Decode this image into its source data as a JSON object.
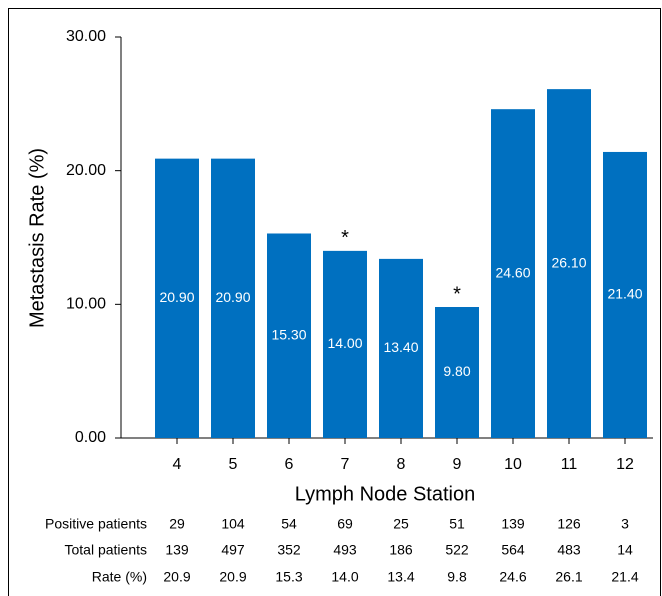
{
  "chart_data": {
    "type": "bar",
    "x_label": "Lymph Node Station",
    "y_label": "Metastasis Rate (%)",
    "categories": [
      "4",
      "5",
      "6",
      "7",
      "8",
      "9",
      "10",
      "11",
      "12"
    ],
    "values": [
      20.9,
      20.9,
      15.3,
      14.0,
      13.4,
      9.8,
      24.6,
      26.1,
      21.4
    ],
    "value_labels": [
      "20.90",
      "20.90",
      "15.30",
      "14.00",
      "13.40",
      "9.80",
      "24.60",
      "26.10",
      "21.40"
    ],
    "bar_markers": [
      null,
      null,
      null,
      "*",
      null,
      "*",
      null,
      null,
      null
    ],
    "color": "#0070c0",
    "ylim": [
      0,
      30
    ],
    "yticks": [
      {
        "value": 0,
        "label": "0.00"
      },
      {
        "value": 10,
        "label": "10.00"
      },
      {
        "value": 20,
        "label": "20.00"
      },
      {
        "value": 30,
        "label": "30.00"
      }
    ],
    "table": {
      "rows": [
        {
          "label": "Positive patients",
          "values": [
            29,
            104,
            54,
            69,
            25,
            51,
            139,
            126,
            3
          ]
        },
        {
          "label": "Total patients",
          "values": [
            139,
            497,
            352,
            493,
            186,
            522,
            564,
            483,
            14
          ]
        },
        {
          "label": "Rate (%)",
          "values": [
            "20.9",
            "20.9",
            "15.3",
            "14.0",
            "13.4",
            "9.8",
            "24.6",
            "26.1",
            "21.4"
          ]
        }
      ]
    }
  }
}
